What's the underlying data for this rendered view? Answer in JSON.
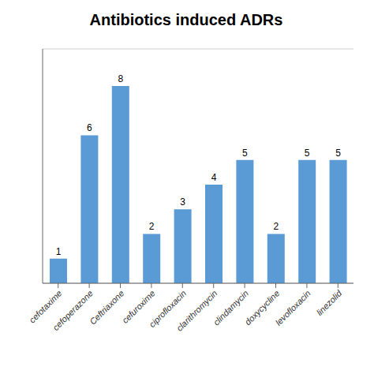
{
  "chart_data": {
    "type": "bar",
    "title": "Antibiotics induced ADRs",
    "categories": [
      "cefotaxime",
      "cefoperazone",
      "Ceftriaxone",
      "cefuroxime",
      "ciprofloxacin",
      "clarithromycin",
      "clindamycin",
      "doxycycline",
      "levofloxacin",
      "linezolid"
    ],
    "values": [
      1,
      6,
      8,
      2,
      3,
      4,
      5,
      2,
      5,
      5
    ],
    "color": "#5b9bd5",
    "ylim": [
      0,
      9.5
    ],
    "yticks": [
      2,
      4,
      6,
      8
    ],
    "grid": true,
    "data_labels": true,
    "tick_labels": "x"
  }
}
